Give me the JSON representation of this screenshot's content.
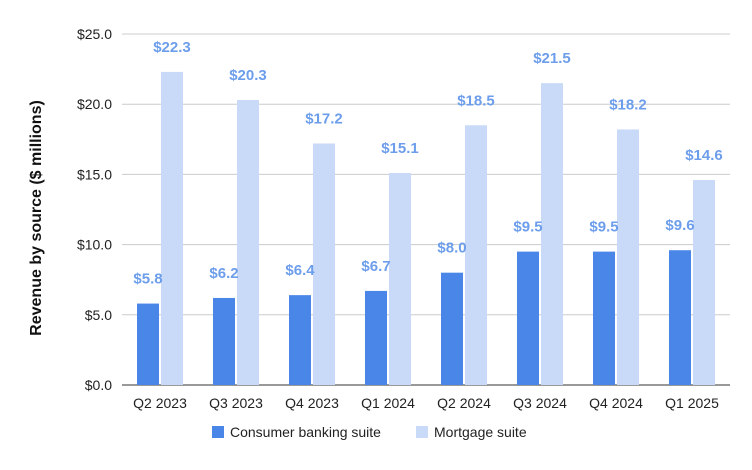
{
  "chart_data": {
    "type": "bar",
    "title": "",
    "xlabel": "",
    "ylabel": "Revenue by source ($ millions)",
    "ylim": [
      0,
      25
    ],
    "y_ticks": [
      "$0.0",
      "$5.0",
      "$10.0",
      "$15.0",
      "$20.0",
      "$25.0"
    ],
    "y_tick_values": [
      0,
      5,
      10,
      15,
      20,
      25
    ],
    "grid": true,
    "legend_position": "bottom",
    "categories": [
      "Q2 2023",
      "Q3 2023",
      "Q4 2023",
      "Q1 2024",
      "Q2 2024",
      "Q3 2024",
      "Q4 2024",
      "Q1 2025"
    ],
    "series": [
      {
        "name": "Consumer banking suite",
        "color": "#4a86e8",
        "label_color": "#6d9eeb",
        "values": [
          5.8,
          6.2,
          6.4,
          6.7,
          8.0,
          9.5,
          9.5,
          9.6
        ],
        "labels": [
          "$5.8",
          "$6.2",
          "$6.4",
          "$6.7",
          "$8.0",
          "$9.5",
          "$9.5",
          "$9.6"
        ]
      },
      {
        "name": "Mortgage suite",
        "color": "#c9daf8",
        "label_color": "#6d9eeb",
        "values": [
          22.3,
          20.3,
          17.2,
          15.1,
          18.5,
          21.5,
          18.2,
          14.6
        ],
        "labels": [
          "$22.3",
          "$20.3",
          "$17.2",
          "$15.1",
          "$18.5",
          "$21.5",
          "$18.2",
          "$14.6"
        ]
      }
    ]
  }
}
